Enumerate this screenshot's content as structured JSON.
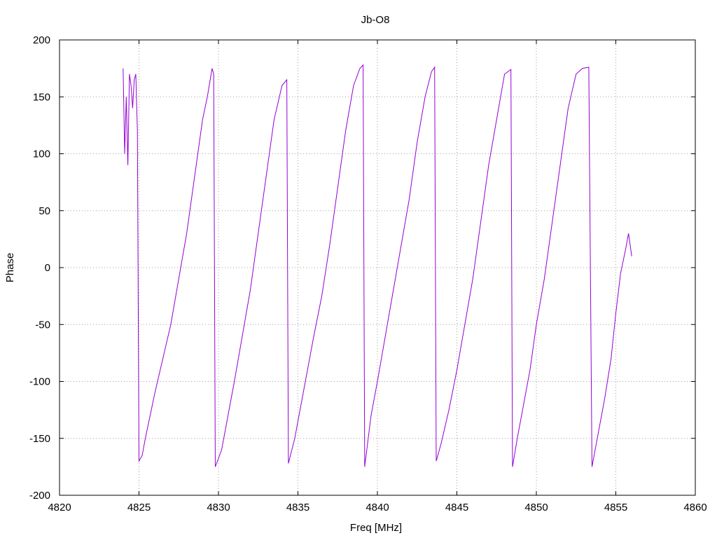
{
  "chart_data": {
    "type": "line",
    "title": "Jb-O8",
    "xlabel": "Freq [MHz]",
    "ylabel": "Phase",
    "xlim": [
      4820,
      4860
    ],
    "ylim": [
      -200,
      200
    ],
    "xticks": [
      4820,
      4825,
      4830,
      4835,
      4840,
      4845,
      4850,
      4855,
      4860
    ],
    "yticks": [
      -200,
      -150,
      -100,
      -50,
      0,
      50,
      100,
      150,
      200
    ],
    "grid": true,
    "series": [
      {
        "color": "#9400d3",
        "x": [
          4824.0,
          4824.1,
          4824.2,
          4824.3,
          4824.4,
          4824.5,
          4824.6,
          4824.7,
          4824.8,
          4824.9,
          4825.0,
          4825.2,
          4825.4,
          4825.7,
          4826.0,
          4826.5,
          4827.0,
          4827.5,
          4828.0,
          4828.5,
          4829.0,
          4829.3,
          4829.6,
          4829.7,
          4829.8,
          4830.2,
          4830.6,
          4831.0,
          4831.5,
          4832.0,
          4832.5,
          4833.0,
          4833.5,
          4834.0,
          4834.3,
          4834.4,
          4834.8,
          4835.2,
          4835.6,
          4836.0,
          4836.5,
          4837.0,
          4837.5,
          4838.0,
          4838.5,
          4838.9,
          4839.1,
          4839.2,
          4839.6,
          4840.0,
          4840.5,
          4841.0,
          4841.5,
          4842.0,
          4842.5,
          4843.0,
          4843.4,
          4843.6,
          4843.7,
          4844.0,
          4844.5,
          4845.0,
          4845.5,
          4846.0,
          4846.5,
          4847.0,
          4847.5,
          4848.0,
          4848.4,
          4848.5,
          4848.8,
          4849.2,
          4849.6,
          4850.0,
          4850.5,
          4851.0,
          4851.5,
          4852.0,
          4852.5,
          4852.9,
          4853.3,
          4853.5,
          4853.9,
          4854.3,
          4854.7,
          4855.0,
          4855.3,
          4855.6,
          4855.8,
          4856.0
        ],
        "y": [
          175,
          100,
          150,
          90,
          170,
          160,
          140,
          165,
          170,
          120,
          -170,
          -165,
          -150,
          -130,
          -110,
          -80,
          -50,
          -10,
          30,
          80,
          130,
          150,
          175,
          170,
          -175,
          -160,
          -130,
          -100,
          -60,
          -20,
          30,
          80,
          130,
          160,
          165,
          -172,
          -150,
          -120,
          -90,
          -60,
          -25,
          20,
          70,
          120,
          160,
          175,
          178,
          -175,
          -130,
          -100,
          -60,
          -20,
          20,
          60,
          110,
          150,
          172,
          176,
          -170,
          -155,
          -125,
          -90,
          -50,
          -10,
          40,
          90,
          130,
          170,
          174,
          -175,
          -150,
          -120,
          -90,
          -50,
          -10,
          40,
          90,
          140,
          170,
          175,
          176,
          -175,
          -145,
          -115,
          -80,
          -40,
          -5,
          15,
          30,
          10
        ]
      }
    ]
  }
}
